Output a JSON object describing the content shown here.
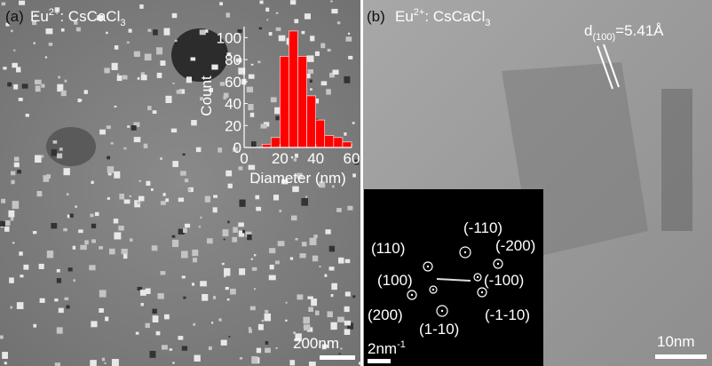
{
  "panel_a": {
    "label": "(a)",
    "title": {
      "base": "Eu",
      "sup": "2+",
      "mid": ": CsCaCl",
      "sub": "3"
    },
    "scale_bar": "200nm"
  },
  "panel_b": {
    "label": "(b)",
    "title": {
      "base": "Eu",
      "sup": "2+",
      "mid": ": CsCaCl",
      "sub": "3"
    },
    "spacing": {
      "base": "d",
      "sub": "(100)",
      "rest": "=5.41Å"
    },
    "scale_bar": "10nm",
    "fft": {
      "spots": [
        "(-110)",
        "(110)",
        "(-200)",
        "(100)",
        "(-100)",
        "(200)",
        "(-1-10)",
        "(1-10)"
      ],
      "scale_bar": {
        "base": "2nm",
        "sup": "-1"
      }
    }
  },
  "chart_data": {
    "type": "histogram",
    "xlabel": "Diameter (nm)",
    "ylabel": "Count",
    "bins": [
      10,
      15,
      20,
      25,
      30,
      35,
      40,
      45,
      50,
      55,
      60
    ],
    "values": [
      3,
      9,
      83,
      106,
      83,
      47,
      25,
      11,
      9,
      5
    ],
    "color": "#ff0000",
    "xlim": [
      0,
      60
    ],
    "xticks": [
      0,
      20,
      40,
      60
    ],
    "ylim": [
      0,
      110
    ],
    "yticks": [
      0,
      20,
      40,
      60,
      80,
      100
    ]
  }
}
